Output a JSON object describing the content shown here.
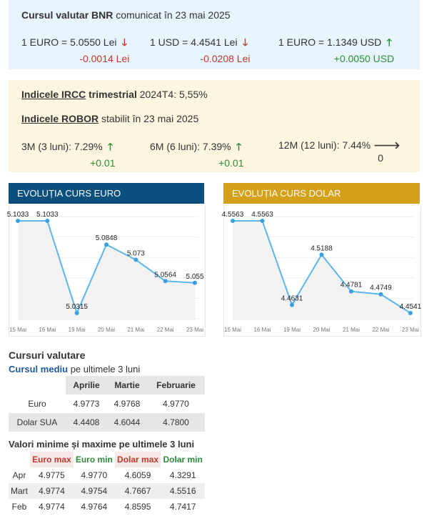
{
  "bnr": {
    "title_bold": "Cursul valutar BNR",
    "title_rest": "comunicat în 23 mai 2025",
    "rates": [
      {
        "label": "1 EURO = 5.0550 Lei",
        "delta": "-0.0014 Lei",
        "dir": "down"
      },
      {
        "label": "1 USD = 4.4541 Lei",
        "delta": "-0.0208 Lei",
        "dir": "down"
      },
      {
        "label": "1 EURO = 1.1349 USD",
        "delta": "+0.0050 USD",
        "dir": "up"
      }
    ]
  },
  "indices": {
    "ircc_link": "Indicele IRCC",
    "ircc_bold": "trimestrial",
    "ircc_rest": "2024T4: 5,55%",
    "robor_link": "Indicele ROBOR",
    "robor_rest": "stabilit în 23 mai 2025",
    "robor": [
      {
        "label": "3M (3 luni): 7.29%",
        "delta": "+0.01",
        "dir": "up"
      },
      {
        "label": "6M (6 luni): 7.39%",
        "delta": "+0.01",
        "dir": "up"
      },
      {
        "label": "12M (12 luni): 7.44%",
        "delta": "0",
        "dir": "flat"
      }
    ]
  },
  "colors": {
    "euro_header": "#0b4f7e",
    "dolar_header": "#d4a017",
    "line": "#5bb5e8",
    "point": "#3a9ee0"
  },
  "charts": {
    "euro": {
      "header": "EVOLUȚIA CURS EURO",
      "categories": [
        "15 Mai",
        "16 Mai",
        "19 Mai",
        "20 Mai",
        "21 Mai",
        "22 Mai",
        "23 Mai"
      ],
      "values": [
        5.1033,
        5.1033,
        5.0315,
        5.0848,
        5.073,
        5.0564,
        5.055
      ],
      "labels": [
        "5.1033",
        "5.1033",
        "5.0315",
        "5.0848",
        "5.073",
        "5.0564",
        "5.055"
      ]
    },
    "dolar": {
      "header": "EVOLUȚIA CURS DOLAR",
      "categories": [
        "15 Mai",
        "16 Mai",
        "19 Mai",
        "20 Mai",
        "21 Mai",
        "22 Mai",
        "23 Mai"
      ],
      "values": [
        4.5563,
        4.5563,
        4.4631,
        4.5188,
        4.4781,
        4.4749,
        4.4541
      ],
      "labels": [
        "4.5563",
        "4.5563",
        "4.4631",
        "4.5188",
        "4.4781",
        "4.4749",
        "4.4541"
      ]
    }
  },
  "chart_data": [
    {
      "type": "line",
      "categories": [
        "15 Mai",
        "16 Mai",
        "19 Mai",
        "20 Mai",
        "21 Mai",
        "22 Mai",
        "23 Mai"
      ],
      "values": [
        5.1033,
        5.1033,
        5.0315,
        5.0848,
        5.073,
        5.0564,
        5.055
      ],
      "title": "EVOLUȚIA CURS EURO"
    },
    {
      "type": "line",
      "categories": [
        "15 Mai",
        "16 Mai",
        "19 Mai",
        "20 Mai",
        "21 Mai",
        "22 Mai",
        "23 Mai"
      ],
      "values": [
        4.5563,
        4.5563,
        4.4631,
        4.5188,
        4.4781,
        4.4749,
        4.4541
      ],
      "title": "EVOLUȚIA CURS DOLAR"
    }
  ],
  "cursuri": {
    "title": "Cursuri valutare",
    "subtitle_blue": "Cursul mediu",
    "subtitle_rest": "pe ultimele 3 luni",
    "headers": [
      "Aprilie",
      "Martie",
      "Februarie"
    ],
    "rows": [
      {
        "name": "Euro",
        "values": [
          "4.9773",
          "4.9768",
          "4.9770"
        ]
      },
      {
        "name": "Dolar SUA",
        "values": [
          "4.4408",
          "4.6044",
          "4.7800"
        ]
      }
    ]
  },
  "minmax": {
    "title": "Valori minime și maxime pe ultimele 3 luni",
    "headers": [
      "Euro max",
      "Euro min",
      "Dolar max",
      "Dolar min"
    ],
    "rows": [
      {
        "name": "Apr",
        "values": [
          "4.9775",
          "4.9770",
          "4.6059",
          "4.3291"
        ]
      },
      {
        "name": "Mart",
        "values": [
          "4.9774",
          "4.9754",
          "4.7667",
          "4.5516"
        ]
      },
      {
        "name": "Feb",
        "values": [
          "4.9774",
          "4.9764",
          "4.8595",
          "4.7417"
        ]
      }
    ]
  }
}
